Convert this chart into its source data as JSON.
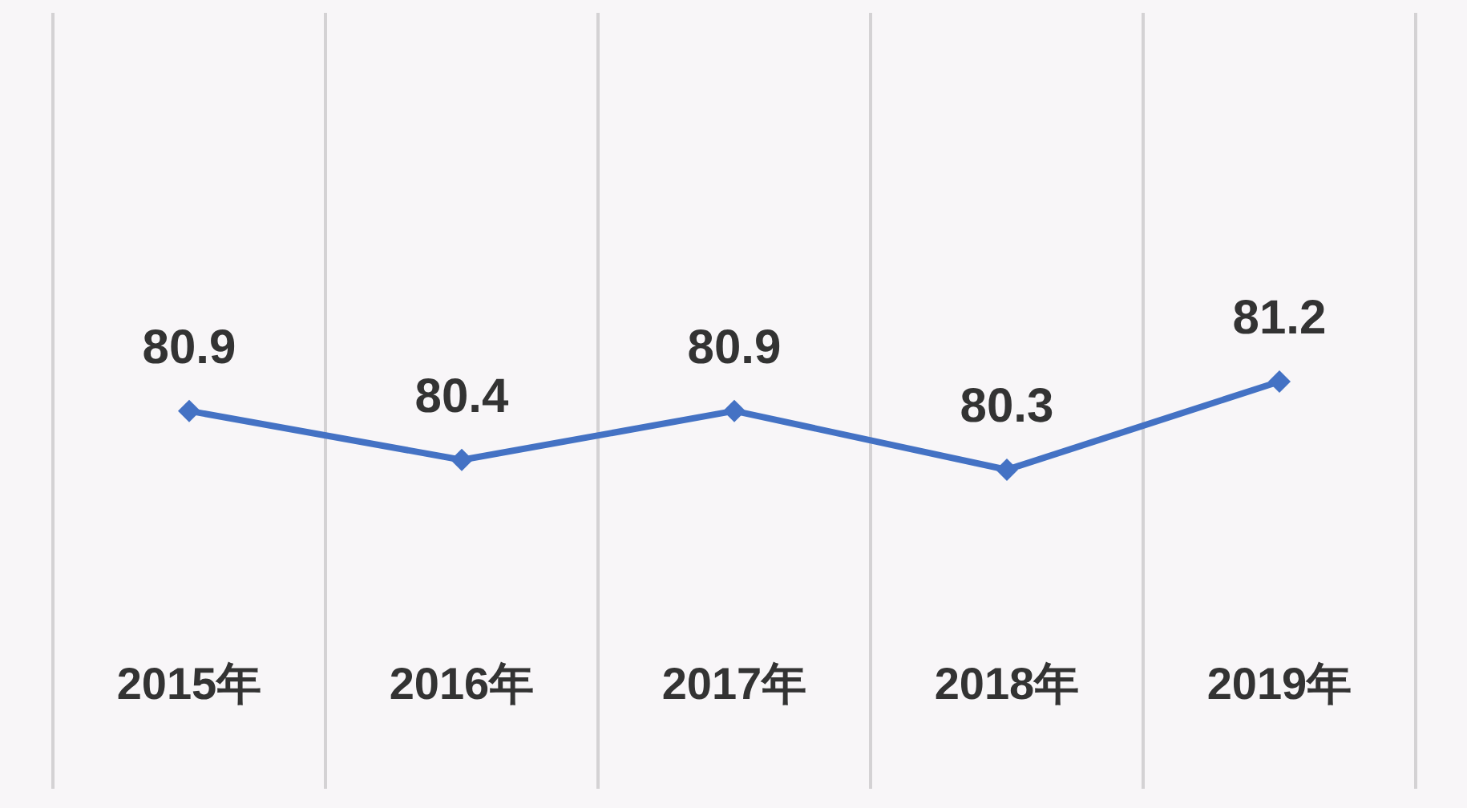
{
  "chart_data": {
    "type": "line",
    "categories": [
      "2015年",
      "2016年",
      "2017年",
      "2018年",
      "2019年"
    ],
    "series": [
      {
        "color": "#4472c4",
        "values": [
          80.9,
          80.4,
          80.9,
          80.3,
          81.2
        ]
      }
    ],
    "data_labels": true,
    "marker": "diamond",
    "grid": "x"
  }
}
